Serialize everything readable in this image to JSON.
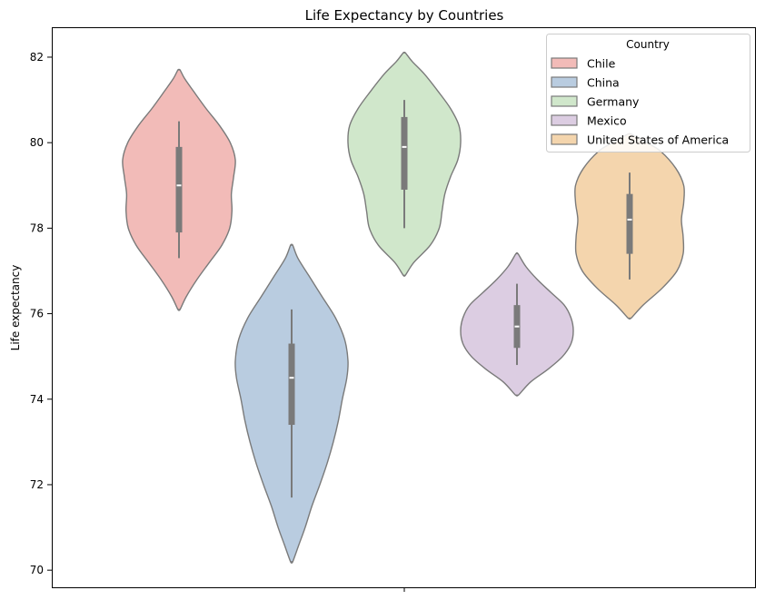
{
  "chart_data": {
    "type": "violin",
    "title": "Life Expectancy by Countries",
    "xlabel": "",
    "ylabel": "Life expectancy",
    "ylim": [
      69.6,
      82.7
    ],
    "yticks": [
      70,
      72,
      74,
      76,
      78,
      80,
      82
    ],
    "grid": false,
    "legend": {
      "title": "Country",
      "placement": "top-right"
    },
    "series": [
      {
        "name": "Chile",
        "color": "#f2bbb8",
        "extent": [
          76.1,
          81.7
        ],
        "whisker": [
          77.3,
          80.5
        ],
        "q1": 77.9,
        "median": 79.0,
        "q3": 79.9,
        "profile": [
          [
            76.1,
            0.02
          ],
          [
            76.4,
            0.13
          ],
          [
            76.8,
            0.32
          ],
          [
            77.2,
            0.54
          ],
          [
            77.6,
            0.76
          ],
          [
            78.0,
            0.9
          ],
          [
            78.4,
            0.94
          ],
          [
            78.8,
            0.93
          ],
          [
            79.2,
            0.97
          ],
          [
            79.6,
            1.0
          ],
          [
            80.0,
            0.91
          ],
          [
            80.4,
            0.72
          ],
          [
            80.8,
            0.48
          ],
          [
            81.2,
            0.26
          ],
          [
            81.5,
            0.1
          ],
          [
            81.7,
            0.02
          ]
        ]
      },
      {
        "name": "China",
        "color": "#b9cce0",
        "extent": [
          70.2,
          77.6
        ],
        "whisker": [
          71.7,
          76.1
        ],
        "q1": 73.4,
        "median": 74.5,
        "q3": 75.3,
        "profile": [
          [
            70.2,
            0.02
          ],
          [
            70.6,
            0.13
          ],
          [
            71.0,
            0.24
          ],
          [
            71.5,
            0.36
          ],
          [
            72.0,
            0.5
          ],
          [
            72.5,
            0.63
          ],
          [
            73.0,
            0.74
          ],
          [
            73.5,
            0.83
          ],
          [
            74.0,
            0.9
          ],
          [
            74.5,
            0.98
          ],
          [
            74.9,
            1.0
          ],
          [
            75.4,
            0.94
          ],
          [
            75.9,
            0.78
          ],
          [
            76.4,
            0.54
          ],
          [
            76.9,
            0.3
          ],
          [
            77.3,
            0.11
          ],
          [
            77.6,
            0.02
          ]
        ]
      },
      {
        "name": "Germany",
        "color": "#d0e7cb",
        "extent": [
          76.9,
          82.1
        ],
        "whisker": [
          78.0,
          81.0
        ],
        "q1": 78.9,
        "median": 79.9,
        "q3": 80.6,
        "profile": [
          [
            76.9,
            0.02
          ],
          [
            77.2,
            0.17
          ],
          [
            77.6,
            0.46
          ],
          [
            78.0,
            0.62
          ],
          [
            78.4,
            0.67
          ],
          [
            78.8,
            0.72
          ],
          [
            79.2,
            0.82
          ],
          [
            79.6,
            0.95
          ],
          [
            80.0,
            1.0
          ],
          [
            80.4,
            0.97
          ],
          [
            80.8,
            0.82
          ],
          [
            81.2,
            0.6
          ],
          [
            81.6,
            0.36
          ],
          [
            81.9,
            0.14
          ],
          [
            82.1,
            0.02
          ]
        ]
      },
      {
        "name": "Mexico",
        "color": "#dccde2",
        "extent": [
          74.1,
          77.4
        ],
        "whisker": [
          74.8,
          76.7
        ],
        "q1": 75.2,
        "median": 75.7,
        "q3": 76.2,
        "profile": [
          [
            74.1,
            0.03
          ],
          [
            74.4,
            0.24
          ],
          [
            74.7,
            0.55
          ],
          [
            75.0,
            0.81
          ],
          [
            75.3,
            0.96
          ],
          [
            75.6,
            1.0
          ],
          [
            75.9,
            0.96
          ],
          [
            76.2,
            0.84
          ],
          [
            76.5,
            0.6
          ],
          [
            76.8,
            0.36
          ],
          [
            77.1,
            0.16
          ],
          [
            77.4,
            0.02
          ]
        ]
      },
      {
        "name": "United States of America",
        "color": "#f4d5ad",
        "extent": [
          75.9,
          80.2
        ],
        "whisker": [
          76.8,
          79.3
        ],
        "q1": 77.4,
        "median": 78.2,
        "q3": 78.8,
        "profile": [
          [
            75.9,
            0.03
          ],
          [
            76.2,
            0.24
          ],
          [
            76.6,
            0.58
          ],
          [
            77.0,
            0.84
          ],
          [
            77.4,
            0.95
          ],
          [
            77.8,
            0.95
          ],
          [
            78.2,
            0.92
          ],
          [
            78.6,
            0.96
          ],
          [
            79.0,
            0.96
          ],
          [
            79.4,
            0.82
          ],
          [
            79.8,
            0.55
          ],
          [
            80.0,
            0.3
          ],
          [
            80.2,
            0.03
          ]
        ]
      }
    ]
  }
}
